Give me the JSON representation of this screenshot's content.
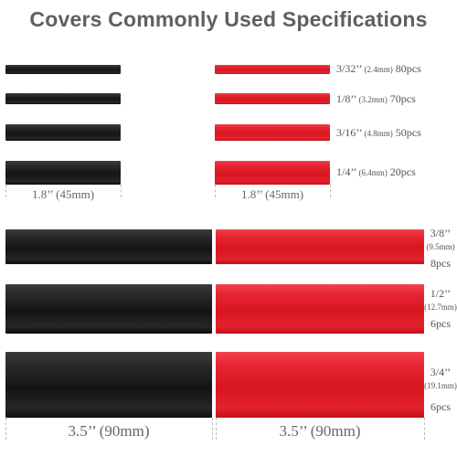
{
  "title": "Covers Commonly Used Specifications",
  "colors": {
    "black": "#1a1a1a",
    "red": "#dc1a26",
    "text": "#555555"
  },
  "small_tubes": [
    {
      "size": "3/32’’",
      "mm": "(2.4mm)",
      "qty": "80pcs"
    },
    {
      "size": "1/8’’",
      "mm": "(3.2mm)",
      "qty": "70pcs"
    },
    {
      "size": "3/16’’",
      "mm": "(4.8mm)",
      "qty": "50pcs"
    },
    {
      "size": "1/4’’",
      "mm": "(6.4mm)",
      "qty": "20pcs"
    }
  ],
  "small_length_label": "1.8’’ (45mm)",
  "large_tubes": [
    {
      "size": "3/8’’",
      "mm": "(9.5mm)",
      "qty": "8pcs"
    },
    {
      "size": "1/2’’",
      "mm": "(12.7mm)",
      "qty": "6pcs"
    },
    {
      "size": "3/4’’",
      "mm": "(19.1mm)",
      "qty": "6pcs"
    }
  ],
  "large_length_label": "3.5’’ (90mm)"
}
